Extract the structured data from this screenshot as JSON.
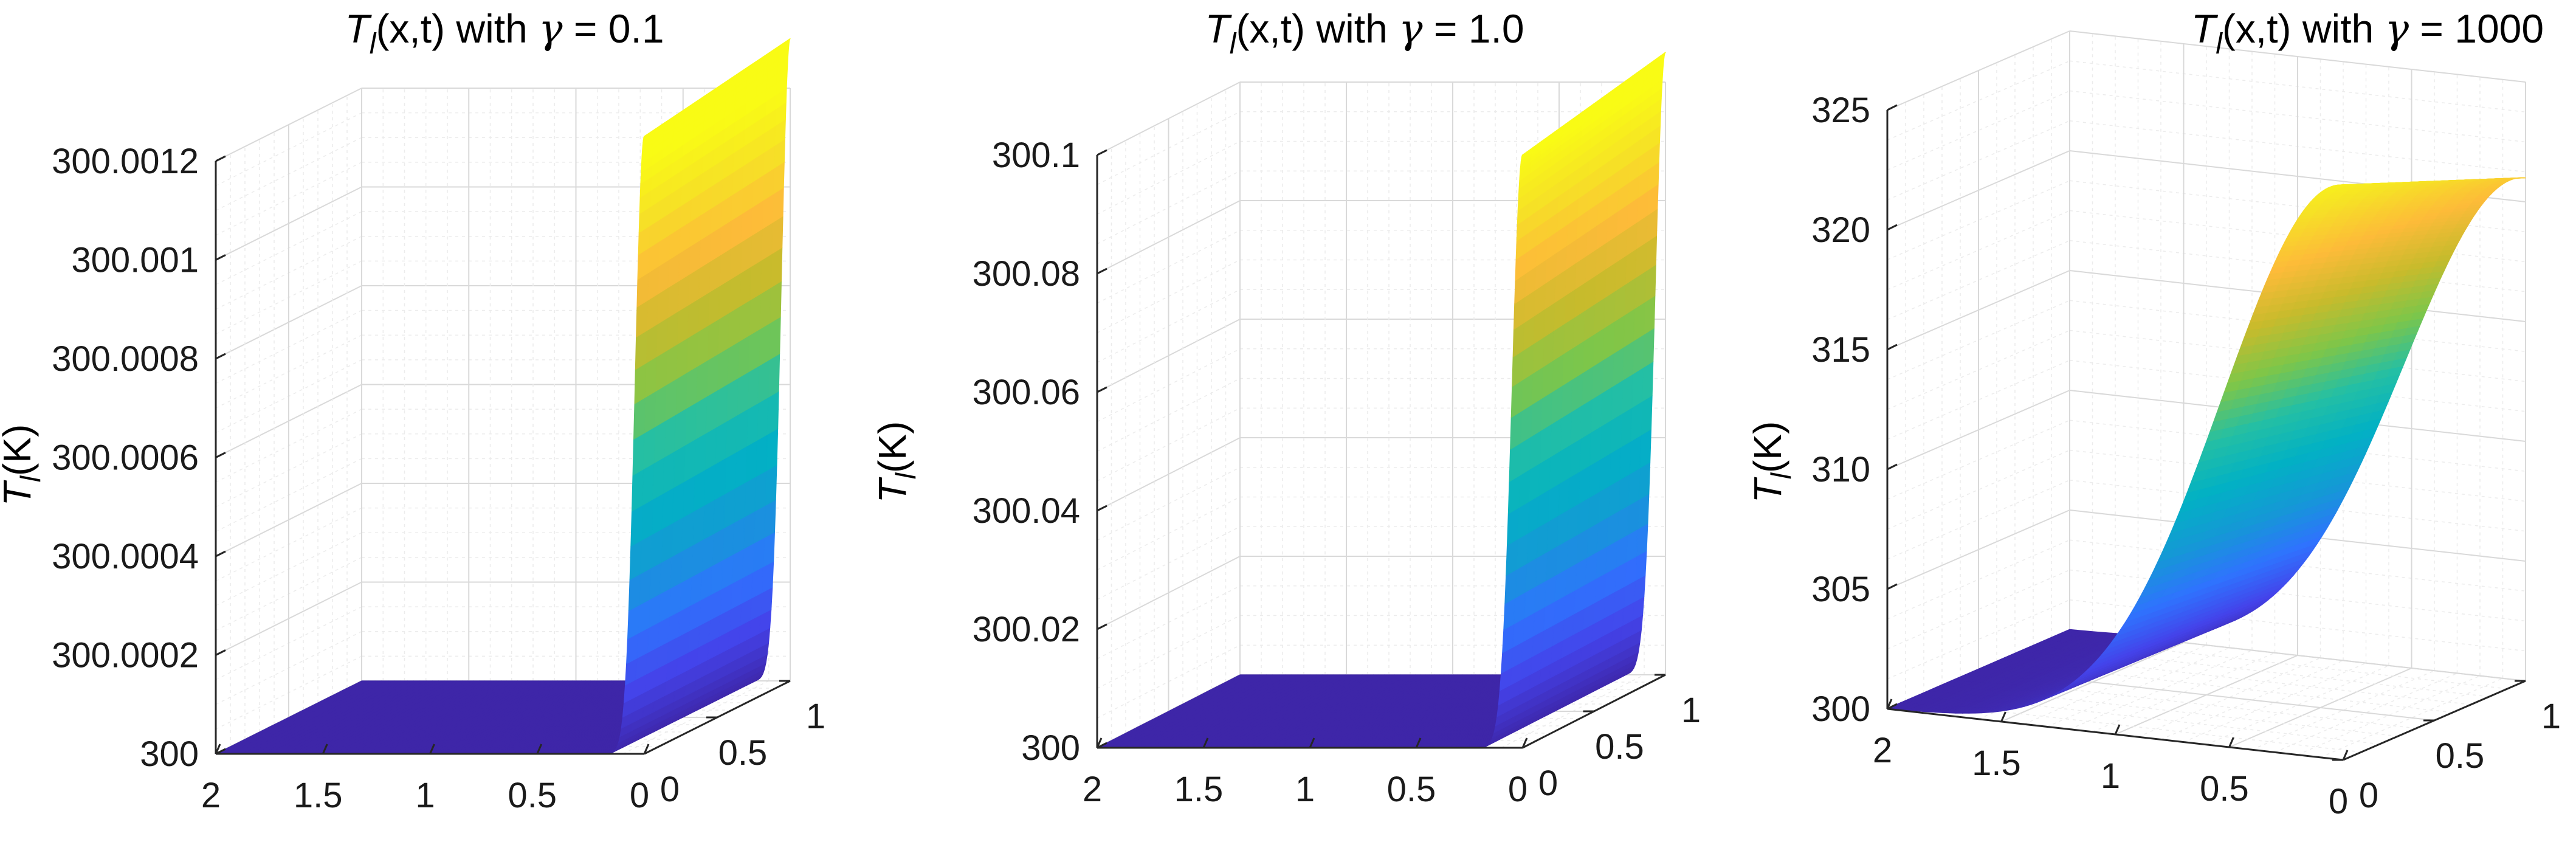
{
  "chart_data": [
    {
      "type": "surface",
      "title": "T_l(x,t) with γ = 0.1",
      "title_parts": {
        "var": "T",
        "sub": "l",
        "rest": "(x,t) with ",
        "greek": "γ",
        "value": " = 0.1"
      },
      "zlabel": {
        "var": "T",
        "sub": "l",
        "unit": "(K)"
      },
      "zlim": [
        300,
        300.0012
      ],
      "z_ticks": [
        "300",
        "300.0002",
        "300.0004",
        "300.0006",
        "300.0008",
        "300.001",
        "300.0012"
      ],
      "x_ticks": [
        "2",
        "1.5",
        "1",
        "0.5",
        "0"
      ],
      "y_ticks": [
        "0",
        "0.5",
        "1"
      ],
      "xlim": [
        0,
        2
      ],
      "ylim": [
        0,
        1
      ],
      "surface": {
        "baseline": 300,
        "peak_at_x0": 300.0013,
        "peak_at_x0_t0": 300.00125,
        "decay_width_x": 0.06
      },
      "colormap": "parula",
      "grid": true
    },
    {
      "type": "surface",
      "title": "T_l(x,t) with γ = 1.0",
      "title_parts": {
        "var": "T",
        "sub": "l",
        "rest": "(x,t) with ",
        "greek": "γ",
        "value": " = 1.0"
      },
      "zlabel": {
        "var": "T",
        "sub": "l",
        "unit": "(K)"
      },
      "zlim": [
        300,
        300.1
      ],
      "z_ticks": [
        "300",
        "300.02",
        "300.04",
        "300.06",
        "300.08",
        "300.1"
      ],
      "x_ticks": [
        "2",
        "1.5",
        "1",
        "0.5",
        "0"
      ],
      "y_ticks": [
        "0",
        "0.5",
        "1"
      ],
      "xlim": [
        0,
        2
      ],
      "ylim": [
        0,
        1
      ],
      "surface": {
        "baseline": 300,
        "peak_at_x0": 300.105,
        "peak_at_x0_t0": 300.1,
        "decay_width_x": 0.07
      },
      "colormap": "parula",
      "grid": true
    },
    {
      "type": "surface",
      "title": "T_l(x,t) with γ = 1000",
      "title_parts": {
        "var": "T",
        "sub": "l",
        "rest": "(x,t) with ",
        "greek": "γ",
        "value": " = 1000"
      },
      "zlabel": {
        "var": "T",
        "sub": "l",
        "unit": "(K)"
      },
      "zlim": [
        300,
        325
      ],
      "z_ticks": [
        "300",
        "305",
        "310",
        "315",
        "320",
        "325"
      ],
      "x_ticks": [
        "2",
        "1.5",
        "1",
        "0.5",
        "0"
      ],
      "y_ticks": [
        "0",
        "0.5",
        "1"
      ],
      "xlim": [
        0,
        2
      ],
      "ylim": [
        0,
        1
      ],
      "surface": {
        "baseline": 300,
        "peak_at_x0": 321,
        "peak_at_x0_t0": 324,
        "decay_width_x": 0.75
      },
      "colormap": "parula",
      "grid": true
    }
  ],
  "colors": {
    "background": "#ffffff",
    "parula": [
      "#3e26a8",
      "#4443ea",
      "#2f73fe",
      "#1598d6",
      "#02b1c4",
      "#24bfa4",
      "#7ec649",
      "#c8bb2c",
      "#fdbb39",
      "#f6e126",
      "#f9fb15"
    ]
  }
}
